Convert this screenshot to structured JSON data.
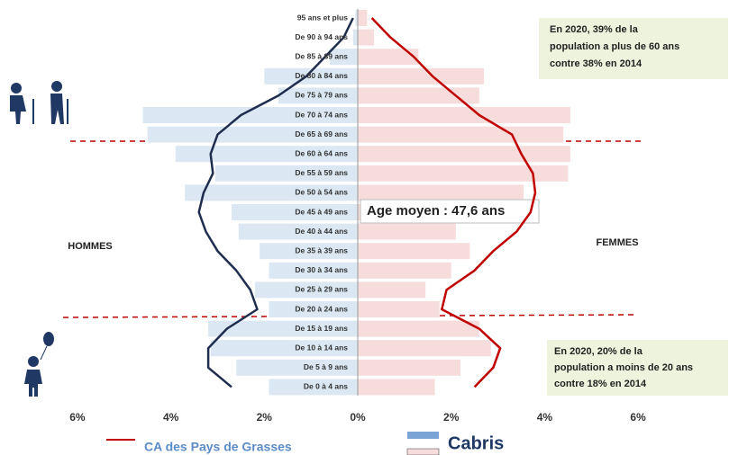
{
  "chart_data": {
    "type": "pyramid",
    "categories": [
      "95 ans et plus",
      "De 90 à 94 ans",
      "De 85 à 89 ans",
      "De 80 à 84 ans",
      "De 75 à 79 ans",
      "De 70 à 74 ans",
      "De 65 à 69 ans",
      "De 60 à 64 ans",
      "De 55 à 59 ans",
      "De 50 à 54 ans",
      "De 45 à 49 ans",
      "De 40 à 44 ans",
      "De 35 à 39 ans",
      "De 30 à 34 ans",
      "De 25 à 29 ans",
      "De 20 à 24 ans",
      "De 15 à 19 ans",
      "De 10 à 14 ans",
      "De 5 à 9 ans",
      "De 0 à 4 ans"
    ],
    "series": [
      {
        "name": "Cabris",
        "style": "bars",
        "color_men": "#dbe8f3",
        "color_women": "#f7dcdc",
        "men": [
          0.05,
          0.1,
          0.6,
          2.0,
          1.7,
          4.6,
          4.5,
          3.9,
          3.05,
          3.7,
          2.7,
          2.55,
          2.1,
          1.9,
          2.2,
          1.9,
          3.2,
          3.15,
          2.6,
          1.9
        ],
        "women": [
          0.2,
          0.35,
          1.3,
          2.7,
          2.6,
          4.55,
          4.4,
          4.55,
          4.5,
          3.55,
          3.5,
          2.1,
          2.4,
          2.0,
          1.45,
          1.75,
          2.6,
          2.85,
          2.2,
          1.65
        ]
      },
      {
        "name": "CA des Pays de Grasses",
        "style": "lines",
        "color_men": "#1f2d4e",
        "color_women": "#c00000",
        "men": [
          0.1,
          0.3,
          0.7,
          1.1,
          1.7,
          2.5,
          3.0,
          3.15,
          3.1,
          3.3,
          3.4,
          3.25,
          3.0,
          2.6,
          2.3,
          2.15,
          2.8,
          3.2,
          3.2,
          2.7
        ],
        "women": [
          0.3,
          0.7,
          1.2,
          1.6,
          2.1,
          2.6,
          3.3,
          3.5,
          3.75,
          3.8,
          3.7,
          3.4,
          2.9,
          2.5,
          1.9,
          1.8,
          2.6,
          3.05,
          2.9,
          2.5
        ]
      }
    ],
    "xlim": [
      -6.5,
      6.5
    ],
    "xticks": [
      {
        "value": -6,
        "label": "6%"
      },
      {
        "value": -4,
        "label": "4%"
      },
      {
        "value": -2,
        "label": "2%"
      },
      {
        "value": 0,
        "label": "0%"
      },
      {
        "value": 2,
        "label": "2%"
      },
      {
        "value": 4,
        "label": "4%"
      },
      {
        "value": 6,
        "label": "6%"
      }
    ],
    "left_label": "HOMMES",
    "right_label": "FEMMES",
    "annotations": [
      {
        "lines": [
          "Age moyen : 47,6 ans"
        ]
      },
      {
        "lines": [
          "En 2020,  39% de la",
          "population a plus de 60 ans",
          "contre 38% en 2014"
        ]
      },
      {
        "lines": [
          "En 2020,  20% de la",
          "population a moins de 20 ans",
          "contre 18% en 2014"
        ]
      }
    ]
  }
}
